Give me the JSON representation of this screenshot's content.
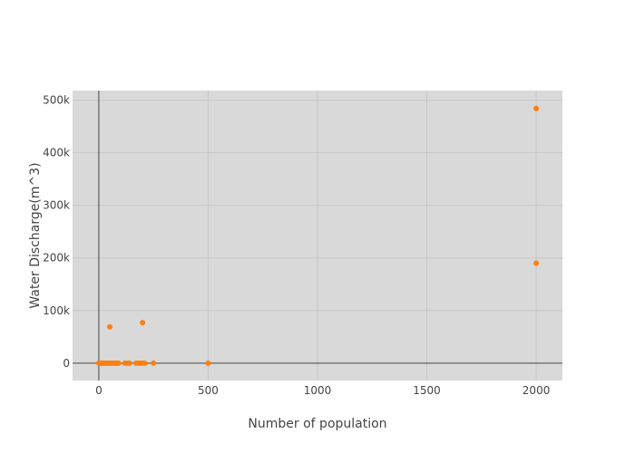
{
  "chart_data": {
    "type": "scatter",
    "title": "",
    "xlabel": "Number of population",
    "ylabel": "Water Discharge(m^3)",
    "xlim": [
      -120,
      2120
    ],
    "ylim": [
      -33000,
      518000
    ],
    "x_ticks": [
      {
        "value": 0,
        "label": "0"
      },
      {
        "value": 500,
        "label": "500"
      },
      {
        "value": 1000,
        "label": "1000"
      },
      {
        "value": 1500,
        "label": "1500"
      },
      {
        "value": 2000,
        "label": "2000"
      }
    ],
    "y_ticks": [
      {
        "value": 0,
        "label": "0"
      },
      {
        "value": 100000,
        "label": "100k"
      },
      {
        "value": 200000,
        "label": "200k"
      },
      {
        "value": 300000,
        "label": "300k"
      },
      {
        "value": 400000,
        "label": "400k"
      },
      {
        "value": 500000,
        "label": "500k"
      }
    ],
    "grid": true,
    "colors": {
      "plot_background": "#d9d9d9",
      "grid": "#c8c8c8",
      "zero_line": "#444444",
      "marker": "#ff7f0e"
    },
    "series": [
      {
        "points": [
          {
            "x": 0,
            "y": 0
          },
          {
            "x": 5,
            "y": 0
          },
          {
            "x": 10,
            "y": 0
          },
          {
            "x": 15,
            "y": 0
          },
          {
            "x": 20,
            "y": 0
          },
          {
            "x": 25,
            "y": 0
          },
          {
            "x": 30,
            "y": 0
          },
          {
            "x": 35,
            "y": 0
          },
          {
            "x": 40,
            "y": 0
          },
          {
            "x": 45,
            "y": 0
          },
          {
            "x": 50,
            "y": 0
          },
          {
            "x": 55,
            "y": 0
          },
          {
            "x": 60,
            "y": 0
          },
          {
            "x": 65,
            "y": 0
          },
          {
            "x": 70,
            "y": 0
          },
          {
            "x": 75,
            "y": 0
          },
          {
            "x": 80,
            "y": 0
          },
          {
            "x": 85,
            "y": 0
          },
          {
            "x": 90,
            "y": 0
          },
          {
            "x": 120,
            "y": 0
          },
          {
            "x": 130,
            "y": 0
          },
          {
            "x": 140,
            "y": 0
          },
          {
            "x": 170,
            "y": 0
          },
          {
            "x": 180,
            "y": 0
          },
          {
            "x": 190,
            "y": 0
          },
          {
            "x": 200,
            "y": 0
          },
          {
            "x": 210,
            "y": 0
          },
          {
            "x": 250,
            "y": 0
          },
          {
            "x": 500,
            "y": 0
          },
          {
            "x": 50,
            "y": 69000
          },
          {
            "x": 200,
            "y": 77000
          },
          {
            "x": 2000,
            "y": 190000
          },
          {
            "x": 2000,
            "y": 484000
          }
        ]
      }
    ]
  }
}
